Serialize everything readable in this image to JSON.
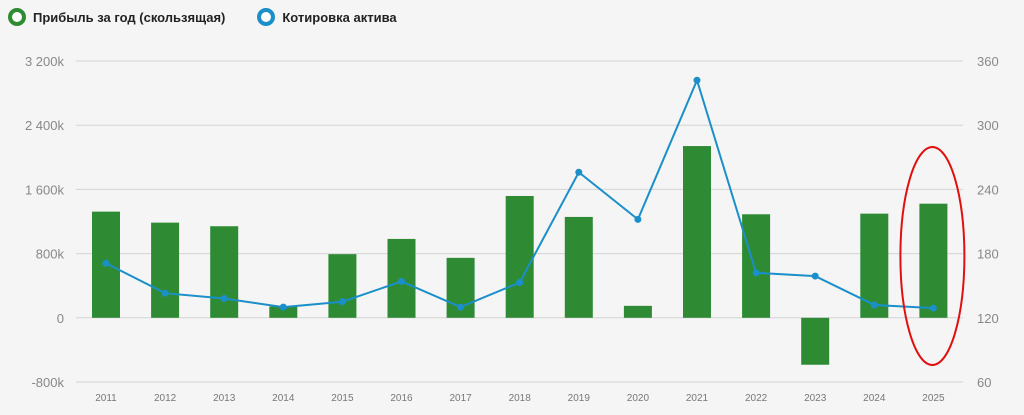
{
  "legend": {
    "items": [
      {
        "label": "Прибыль за год (скользящая)",
        "color": "#2e8b34",
        "icon": "ring-marker"
      },
      {
        "label": "Котировка актива",
        "color": "#1a8fc9",
        "icon": "ring-marker"
      }
    ]
  },
  "colors": {
    "bar": "#2e8b34",
    "line": "#1a8fc9",
    "highlight": "#e01010",
    "grid": "#d4d4d4"
  },
  "chart_data": {
    "type": "bar+line",
    "title": "",
    "categories": [
      "2011",
      "2012",
      "2013",
      "2014",
      "2015",
      "2016",
      "2017",
      "2018",
      "2019",
      "2020",
      "2021",
      "2022",
      "2023",
      "2024",
      "2025"
    ],
    "series": [
      {
        "name": "Прибыль за год (скользящая)",
        "type": "bar",
        "axis": "left",
        "values": [
          1323,
          1186,
          1141,
          141,
          793,
          983,
          747,
          1518,
          1257,
          149,
          2140,
          1290,
          -585,
          1298,
          1422
        ]
      },
      {
        "name": "Котировка актива",
        "type": "line",
        "axis": "right",
        "values": [
          171,
          143,
          138,
          130,
          135,
          154,
          130,
          153,
          256,
          212,
          342,
          162,
          159,
          132,
          129
        ]
      }
    ],
    "left_axis": {
      "ticks": [
        "3 200k",
        "2 400k",
        "1 600k",
        "800k",
        "0",
        "-800k"
      ],
      "values": [
        3200,
        2400,
        1600,
        800,
        0,
        -800
      ],
      "ylim": [
        -800,
        3200
      ],
      "unit": "k"
    },
    "right_axis": {
      "ticks": [
        "360",
        "300",
        "240",
        "180",
        "120",
        "60"
      ],
      "values": [
        360,
        300,
        240,
        180,
        120,
        60
      ],
      "ylim": [
        60,
        360
      ]
    },
    "grid": true,
    "legend_position": "top-left",
    "annotations": [
      {
        "type": "ellipse",
        "target": "2025",
        "color": "#e01010"
      }
    ]
  }
}
